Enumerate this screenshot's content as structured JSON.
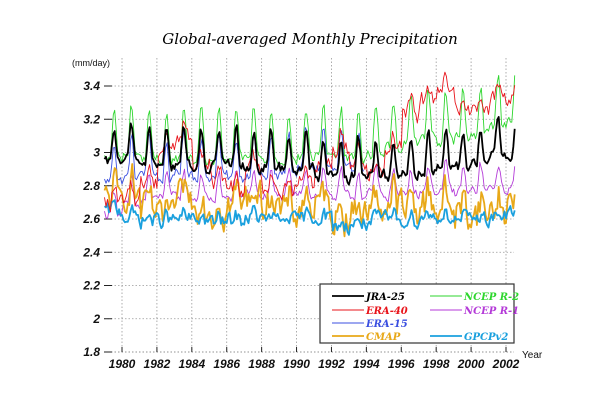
{
  "chart_data": {
    "type": "line",
    "title": "Global-averaged Monthly Precipitation",
    "xlabel": "Year",
    "ylabel": "(mm/day)",
    "xlim": [
      1979.0,
      2002.6
    ],
    "ylim": [
      1.8,
      3.5
    ],
    "x_ticks": [
      1980,
      1982,
      1984,
      1986,
      1988,
      1990,
      1992,
      1994,
      1996,
      1998,
      2000,
      2002
    ],
    "x_tick_labels": [
      "1980",
      "1982",
      "1984",
      "1986",
      "1988",
      "1990",
      "1992",
      "1994",
      "1996",
      "1998",
      "2000",
      "2002"
    ],
    "y_ticks": [
      1.8,
      2.0,
      2.2,
      2.4,
      2.6,
      2.8,
      3.0,
      3.2,
      3.4
    ],
    "y_tick_labels": [
      "1.8",
      "2",
      "2.2",
      "2.4",
      "2.6",
      "2.8",
      "3",
      "3.2",
      "3.4"
    ],
    "grid": true,
    "legend_position": "bottom-right",
    "resolution": "monthly",
    "series": [
      {
        "name": "JRA-25",
        "color": "#000000",
        "weight": "thick",
        "start_year": 1979.0,
        "end_year": 2002.5,
        "annual_mean": {
          "1979": 3.0,
          "1980": 3.02,
          "1981": 3.0,
          "1982": 2.98,
          "1983": 3.0,
          "1984": 2.97,
          "1985": 2.98,
          "1986": 2.99,
          "1987": 2.97,
          "1988": 2.98,
          "1989": 2.96,
          "1990": 2.97,
          "1991": 2.92,
          "1992": 2.9,
          "1993": 2.93,
          "1994": 2.93,
          "1995": 2.92,
          "1996": 2.94,
          "1997": 2.95,
          "1998": 2.97,
          "1999": 2.98,
          "2000": 3.0,
          "2001": 3.05,
          "2002": 3.02
        },
        "seasonal_amplitude": 0.11,
        "noise": 0.03
      },
      {
        "name": "ERA-40",
        "color": "#e8141b",
        "weight": "thin",
        "start_year": 1979.0,
        "end_year": 2002.5,
        "annual_mean": {
          "1979": 2.72,
          "1980": 2.75,
          "1981": 2.85,
          "1982": 3.05,
          "1983": 3.12,
          "1984": 2.95,
          "1985": 2.86,
          "1986": 2.82,
          "1987": 2.92,
          "1988": 2.82,
          "1989": 2.8,
          "1990": 2.85,
          "1991": 2.98,
          "1992": 3.05,
          "1993": 2.98,
          "1994": 2.92,
          "1995": 3.05,
          "1996": 3.25,
          "1997": 3.35,
          "1998": 3.38,
          "1999": 3.3,
          "2000": 3.28,
          "2001": 3.35,
          "2002": 3.36
        },
        "seasonal_amplitude": 0.05,
        "noise": 0.05
      },
      {
        "name": "ERA-15",
        "color": "#3b4fe0",
        "weight": "thin",
        "start_year": 1979.0,
        "end_year": 1993.9,
        "annual_mean": {
          "1979": 2.9,
          "1980": 2.92,
          "1981": 2.95,
          "1982": 2.9,
          "1983": 2.96,
          "1984": 2.92,
          "1985": 2.93,
          "1986": 2.92,
          "1987": 2.94,
          "1988": 2.92,
          "1989": 2.95,
          "1990": 2.98,
          "1991": 2.98,
          "1992": 2.96,
          "1993": 2.97
        },
        "seasonal_amplitude": 0.12,
        "noise": 0.03
      },
      {
        "name": "CMAP",
        "color": "#e8a818",
        "weight": "thick",
        "start_year": 1979.0,
        "end_year": 2002.5,
        "annual_mean": {
          "1979": 2.75,
          "1980": 2.78,
          "1981": 2.68,
          "1982": 2.62,
          "1983": 2.75,
          "1984": 2.7,
          "1985": 2.66,
          "1986": 2.72,
          "1987": 2.75,
          "1988": 2.72,
          "1989": 2.66,
          "1990": 2.7,
          "1991": 2.7,
          "1992": 2.64,
          "1993": 2.66,
          "1994": 2.7,
          "1995": 2.72,
          "1996": 2.68,
          "1997": 2.72,
          "1998": 2.7,
          "1999": 2.66,
          "2000": 2.66,
          "2001": 2.68,
          "2002": 2.72
        },
        "seasonal_amplitude": 0.05,
        "noise": 0.09
      },
      {
        "name": "NCEP R-2",
        "color": "#2ed62e",
        "weight": "thin",
        "start_year": 1979.0,
        "end_year": 2002.5,
        "annual_mean": {
          "1979": 3.05,
          "1980": 3.08,
          "1981": 3.05,
          "1982": 3.04,
          "1983": 3.05,
          "1984": 3.04,
          "1985": 3.04,
          "1986": 3.05,
          "1987": 3.06,
          "1988": 3.05,
          "1989": 3.04,
          "1990": 3.06,
          "1991": 3.08,
          "1992": 3.06,
          "1993": 3.05,
          "1994": 3.08,
          "1995": 3.12,
          "1996": 3.15,
          "1997": 3.18,
          "1998": 3.16,
          "1999": 3.18,
          "2000": 3.2,
          "2001": 3.25,
          "2002": 3.3
        },
        "seasonal_amplitude": 0.15,
        "noise": 0.03
      },
      {
        "name": "NCEP R-1",
        "color": "#b43ad8",
        "weight": "thin",
        "start_year": 1979.0,
        "end_year": 2002.5,
        "annual_mean": {
          "1979": 2.68,
          "1980": 2.72,
          "1981": 2.76,
          "1982": 2.78,
          "1983": 2.78,
          "1984": 2.77,
          "1985": 2.76,
          "1986": 2.78,
          "1987": 2.79,
          "1988": 2.78,
          "1989": 2.78,
          "1990": 2.8,
          "1991": 2.8,
          "1992": 2.78,
          "1993": 2.78,
          "1994": 2.8,
          "1995": 2.79,
          "1996": 2.8,
          "1997": 2.82,
          "1998": 2.82,
          "1999": 2.8,
          "2000": 2.82,
          "2001": 2.82,
          "2002": 2.83
        },
        "seasonal_amplitude": 0.08,
        "noise": 0.03
      },
      {
        "name": "GPCPv2",
        "color": "#1aa0de",
        "weight": "thick",
        "start_year": 1979.0,
        "end_year": 2002.5,
        "annual_mean": {
          "1979": 2.66,
          "1980": 2.62,
          "1981": 2.6,
          "1982": 2.6,
          "1983": 2.61,
          "1984": 2.6,
          "1985": 2.59,
          "1986": 2.6,
          "1987": 2.62,
          "1988": 2.6,
          "1989": 2.6,
          "1990": 2.61,
          "1991": 2.62,
          "1992": 2.56,
          "1993": 2.58,
          "1994": 2.6,
          "1995": 2.61,
          "1996": 2.6,
          "1997": 2.62,
          "1998": 2.62,
          "1999": 2.6,
          "2000": 2.61,
          "2001": 2.62,
          "2002": 2.65
        },
        "seasonal_amplitude": 0.015,
        "noise": 0.04
      }
    ],
    "legend": {
      "columns": [
        [
          "JRA-25",
          "ERA-40",
          "ERA-15",
          "CMAP"
        ],
        [
          "NCEP R-2",
          "NCEP R-1",
          "",
          "GPCPv2"
        ]
      ]
    }
  }
}
